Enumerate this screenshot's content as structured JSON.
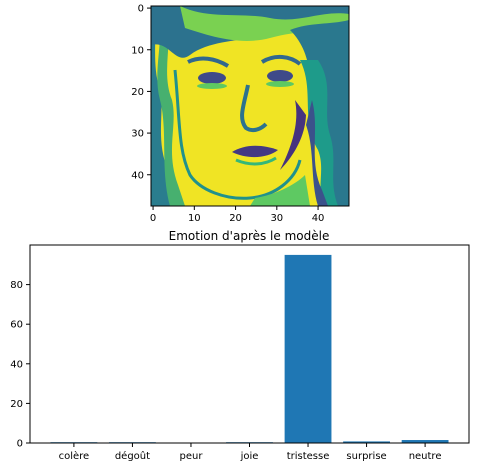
{
  "figure": {
    "background": "#ffffff",
    "axis_color": "#000000"
  },
  "chart_data": [
    {
      "type": "heatmap",
      "description_kind": "grayscale face image rendered with viridis-like colormap",
      "title": "",
      "xlabel": "",
      "ylabel": "",
      "grid_size": [
        48,
        48
      ],
      "xlim": [
        -0.5,
        47.5
      ],
      "ylim": [
        47.5,
        -0.5
      ],
      "xticks": [
        0,
        10,
        20,
        30,
        40
      ],
      "yticks": [
        0,
        10,
        20,
        30,
        40
      ],
      "grid": false,
      "colormap": [
        "#440154",
        "#3b528b",
        "#21918c",
        "#5ec962",
        "#fde725"
      ],
      "dominant_color": "#f0e424"
    },
    {
      "type": "bar",
      "title": "Emotion d'après le modèle",
      "xlabel": "",
      "ylabel": "",
      "categories": [
        "colère",
        "dégoût",
        "peur",
        "joie",
        "tristesse",
        "surprise",
        "neutre"
      ],
      "values": [
        0.4,
        0.4,
        0.1,
        0.4,
        95.0,
        0.8,
        1.5
      ],
      "ylim": [
        0,
        100
      ],
      "yticks": [
        0,
        20,
        40,
        60,
        80
      ],
      "grid": false,
      "bar_color": "#1f77b4"
    }
  ]
}
